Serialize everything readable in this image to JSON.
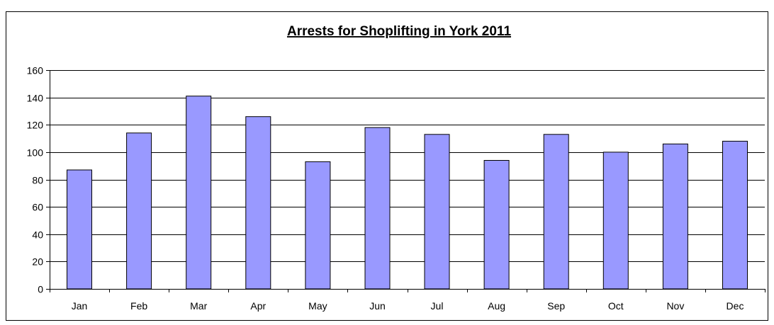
{
  "chart_data": {
    "type": "bar",
    "title": "Arrests for Shoplifting in York 2011",
    "xlabel": "",
    "ylabel": "",
    "categories": [
      "Jan",
      "Feb",
      "Mar",
      "Apr",
      "May",
      "Jun",
      "Jul",
      "Aug",
      "Sep",
      "Oct",
      "Nov",
      "Dec"
    ],
    "values": [
      87,
      114,
      141,
      126,
      93,
      118,
      113,
      94,
      113,
      100,
      106,
      108
    ],
    "ylim": [
      0,
      160
    ],
    "yticks": [
      "0",
      "20",
      "40",
      "60",
      "80",
      "100",
      "120",
      "140",
      "160"
    ],
    "grid": true,
    "legend": "none",
    "colors": {
      "bar": "#9999ff",
      "bar_border": "#000000",
      "grid": "#000000"
    }
  }
}
